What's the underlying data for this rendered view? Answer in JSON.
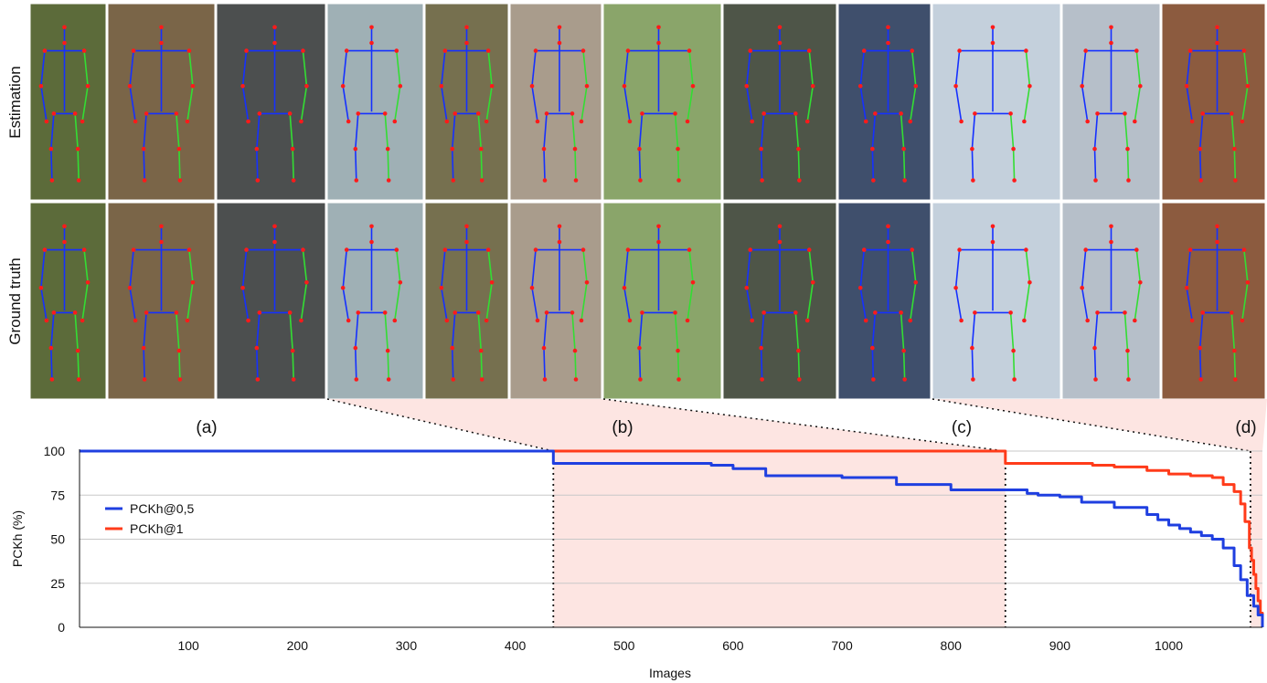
{
  "figure": {
    "row_labels": [
      "Estimation",
      "Ground truth"
    ],
    "group_labels": [
      "(a)",
      "(b)",
      "(c)",
      "(d)"
    ]
  },
  "colors": {
    "series_pckh05": "#1f3fe0",
    "series_pckh1": "#ff3b1a",
    "highlight_region": "#fde5e2",
    "gridline": "#c8c8c8",
    "bone_blue": "#1530ff",
    "bone_green": "#33dd33",
    "joint_red": "#ff1a1a"
  },
  "chart_data": {
    "type": "line",
    "title": "",
    "xlabel": "Images",
    "ylabel": "PCKh (%)",
    "xlim": [
      0,
      1086
    ],
    "ylim": [
      0,
      100
    ],
    "x_ticks": [
      100,
      200,
      300,
      400,
      500,
      600,
      700,
      800,
      900,
      1000
    ],
    "y_ticks": [
      0,
      25,
      50,
      75,
      100
    ],
    "grid": "horizontal",
    "legend_position": "left",
    "highlight_regions": [
      [
        435,
        850
      ],
      [
        1075,
        1086
      ]
    ],
    "region_boundaries": [
      435,
      850,
      1075
    ],
    "series": [
      {
        "name": "PCKh@0,5",
        "x": [
          0,
          434,
          435,
          560,
          580,
          600,
          630,
          700,
          750,
          800,
          850,
          870,
          880,
          900,
          920,
          950,
          980,
          990,
          1000,
          1010,
          1020,
          1030,
          1040,
          1050,
          1060,
          1066,
          1072,
          1078,
          1082,
          1086
        ],
        "y": [
          100,
          100,
          93,
          93,
          92,
          90,
          86,
          85,
          81,
          78,
          78,
          76,
          75,
          74,
          71,
          68,
          64,
          61,
          58,
          56,
          54,
          52,
          50,
          45,
          35,
          27,
          18,
          12,
          7,
          0
        ]
      },
      {
        "name": "PCKh@1",
        "x": [
          0,
          849,
          850,
          910,
          930,
          950,
          980,
          1000,
          1020,
          1040,
          1050,
          1060,
          1066,
          1070,
          1074,
          1076,
          1078,
          1080,
          1082,
          1084,
          1086
        ],
        "y": [
          100,
          100,
          93,
          93,
          92,
          91,
          89,
          87,
          86,
          85,
          81,
          77,
          70,
          60,
          45,
          38,
          30,
          22,
          15,
          8,
          0
        ]
      }
    ]
  },
  "thumbnails": [
    {
      "name": "thumb-mower-man",
      "group": "a",
      "bg": "#5c6b3a"
    },
    {
      "name": "thumb-kneeling-man",
      "group": "a",
      "bg": "#7a6548"
    },
    {
      "name": "thumb-cyclist",
      "group": "a",
      "bg": "#4c4f4f"
    },
    {
      "name": "thumb-child-cart",
      "group": "b",
      "bg": "#9fb0b5"
    },
    {
      "name": "thumb-walker",
      "group": "b",
      "bg": "#76704f"
    },
    {
      "name": "thumb-yoga-woman",
      "group": "b",
      "bg": "#a99c8c"
    },
    {
      "name": "thumb-cart-driver",
      "group": "b",
      "bg": "#8aa56a"
    },
    {
      "name": "thumb-horse-rider",
      "group": "b",
      "bg": "#4e5548"
    },
    {
      "name": "thumb-runner",
      "group": "c",
      "bg": "#3f4f6c"
    },
    {
      "name": "thumb-skier",
      "group": "c",
      "bg": "#c4d0dc"
    },
    {
      "name": "thumb-ski-racer",
      "group": "c",
      "bg": "#b6bfc9"
    },
    {
      "name": "thumb-worker",
      "group": "d",
      "bg": "#8c5b3f"
    }
  ]
}
